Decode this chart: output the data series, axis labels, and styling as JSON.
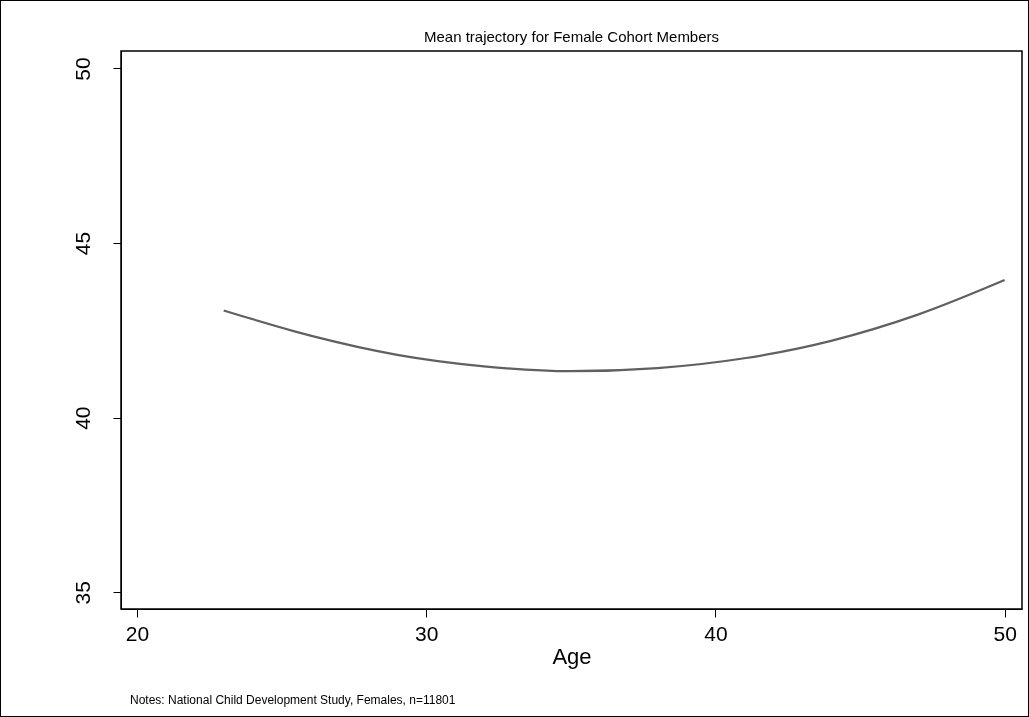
{
  "chart_data": {
    "type": "line",
    "title": "Mean trajectory for Female Cohort Members",
    "xlabel": "Age",
    "x": [
      23,
      26,
      29,
      32,
      35,
      38,
      41,
      44,
      47,
      50
    ],
    "series": [
      {
        "color": "#606060",
        "values": [
          43.07,
          42.35,
          41.8,
          41.47,
          41.33,
          41.42,
          41.7,
          42.2,
          42.95,
          43.94
        ]
      }
    ],
    "xlim": [
      19.45,
      50.6
    ],
    "xticks": [
      20,
      30,
      40,
      50
    ],
    "ylim": [
      34.52,
      50.5
    ],
    "yticks": [
      35,
      40,
      45,
      50
    ],
    "grid": false,
    "legend": false,
    "marker": "none",
    "line_style": "solid",
    "annotations": [
      "Notes: National Child Development Study, Females, n=11801"
    ]
  }
}
